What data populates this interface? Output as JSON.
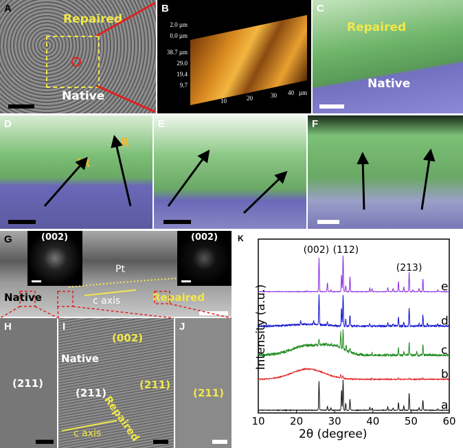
{
  "panels": {
    "A": {
      "label": "A",
      "repaired": "Repaired",
      "native": "Native"
    },
    "B": {
      "label": "B",
      "z_ticks": [
        "2.0 µm",
        "0.0 µm"
      ],
      "y_ticks": [
        "38.7 µm",
        "29.0",
        "19.4",
        "9.7"
      ],
      "x_ticks": [
        "10",
        "20",
        "30",
        "40"
      ],
      "x_unit": "µm"
    },
    "C": {
      "label": "C",
      "repaired": "Repaired",
      "native": "Native"
    },
    "D": {
      "label": "D",
      "ir": "IR",
      "r": "R"
    },
    "E": {
      "label": "E"
    },
    "F": {
      "label": "F"
    },
    "G": {
      "label": "G",
      "inset_left": "(002)",
      "inset_right": "(002)",
      "pt": "Pt",
      "native": "Native",
      "c_axis": "c axis",
      "repaired": "Repaired"
    },
    "H": {
      "label": "H",
      "plane": "(211)"
    },
    "I": {
      "label": "I",
      "native": "Native",
      "plane_native": "(211)",
      "plane_002": "(002)",
      "plane_repaired": "(211)",
      "repaired": "Repaired",
      "c_axis": "c axis"
    },
    "J": {
      "label": "J",
      "plane": "(211)"
    }
  },
  "colors": {
    "yellow": "#f2e84a",
    "red": "#e02020",
    "green": "#7fc27a",
    "purple": "#7b78c8"
  },
  "chart_data": {
    "panel_label": "K",
    "type": "line",
    "xlabel": "2θ (degree)",
    "ylabel": "Intensity (a.u.)",
    "xlim": [
      10,
      60
    ],
    "x_ticks": [
      "10",
      "20",
      "30",
      "40",
      "50",
      "60"
    ],
    "grid": false,
    "peak_labels": [
      {
        "text": "(002)",
        "x": 25.9
      },
      {
        "text": "(112)",
        "x": 32.2
      },
      {
        "text": "(213)",
        "x": 49.5
      }
    ],
    "series": [
      {
        "name": "a",
        "color": "#111111",
        "offset": 0,
        "noise": 0.02,
        "hump": 0,
        "peaks": [
          [
            25.9,
            0.85
          ],
          [
            28.1,
            0.12
          ],
          [
            29.0,
            0.08
          ],
          [
            31.8,
            0.6
          ],
          [
            32.2,
            0.88
          ],
          [
            32.9,
            0.2
          ],
          [
            34.0,
            0.32
          ],
          [
            39.2,
            0.08
          ],
          [
            39.8,
            0.06
          ],
          [
            43.9,
            0.1
          ],
          [
            45.3,
            0.07
          ],
          [
            46.7,
            0.22
          ],
          [
            48.1,
            0.12
          ],
          [
            49.5,
            0.5
          ],
          [
            52.1,
            0.08
          ],
          [
            53.1,
            0.3
          ],
          [
            57.0,
            0.05
          ]
        ]
      },
      {
        "name": "b",
        "color": "#e02424",
        "offset": 0.9,
        "noise": 0.03,
        "hump": 0.3,
        "peaks": [
          [
            31.6,
            0.1
          ],
          [
            32.2,
            0.07
          ],
          [
            39.8,
            0.03
          ],
          [
            46.7,
            0.04
          ],
          [
            49.5,
            0.04
          ],
          [
            53.1,
            0.03
          ]
        ]
      },
      {
        "name": "c",
        "color": "#1f8a1f",
        "offset": 1.6,
        "noise": 0.08,
        "hump": 0.28,
        "peaks": [
          [
            25.9,
            0.2
          ],
          [
            31.6,
            0.45
          ],
          [
            32.2,
            0.55
          ],
          [
            33.0,
            0.15
          ],
          [
            34.0,
            0.12
          ],
          [
            39.8,
            0.08
          ],
          [
            43.9,
            0.06
          ],
          [
            46.7,
            0.2
          ],
          [
            48.1,
            0.1
          ],
          [
            49.5,
            0.38
          ],
          [
            51.5,
            0.08
          ],
          [
            53.1,
            0.3
          ]
        ]
      },
      {
        "name": "d",
        "color": "#1010d0",
        "offset": 2.45,
        "noise": 0.05,
        "hump": 0.05,
        "peaks": [
          [
            21.1,
            0.1
          ],
          [
            24.5,
            0.12
          ],
          [
            25.9,
            0.88
          ],
          [
            28.1,
            0.12
          ],
          [
            31.8,
            0.5
          ],
          [
            32.2,
            0.92
          ],
          [
            32.9,
            0.2
          ],
          [
            34.0,
            0.32
          ],
          [
            39.2,
            0.06
          ],
          [
            43.9,
            0.12
          ],
          [
            45.3,
            0.08
          ],
          [
            46.7,
            0.25
          ],
          [
            48.1,
            0.12
          ],
          [
            49.5,
            0.52
          ],
          [
            52.1,
            0.08
          ],
          [
            53.1,
            0.32
          ],
          [
            54.3,
            0.08
          ],
          [
            57.0,
            0.05
          ]
        ]
      },
      {
        "name": "e",
        "color": "#8a2be2",
        "offset": 3.45,
        "noise": 0.015,
        "hump": 0,
        "peaks": [
          [
            22.8,
            0.03
          ],
          [
            25.9,
            0.98
          ],
          [
            28.1,
            0.26
          ],
          [
            29.0,
            0.06
          ],
          [
            31.8,
            0.5
          ],
          [
            32.2,
            1.05
          ],
          [
            32.9,
            0.18
          ],
          [
            34.0,
            0.44
          ],
          [
            39.2,
            0.1
          ],
          [
            39.8,
            0.08
          ],
          [
            43.9,
            0.12
          ],
          [
            45.3,
            0.1
          ],
          [
            46.7,
            0.3
          ],
          [
            48.1,
            0.14
          ],
          [
            49.5,
            0.58
          ],
          [
            50.5,
            0.06
          ],
          [
            52.1,
            0.1
          ],
          [
            53.1,
            0.38
          ],
          [
            57.0,
            0.05
          ]
        ]
      }
    ]
  }
}
